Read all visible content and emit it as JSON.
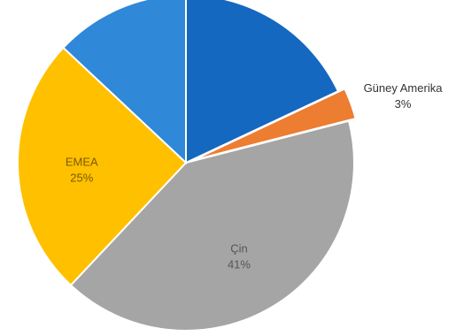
{
  "chart_data": {
    "type": "pie",
    "title": "",
    "start_angle_deg": 0,
    "direction": "clockwise",
    "slices": [
      {
        "label": "",
        "value": 18,
        "percent_label": "",
        "color": "#1568c0",
        "label_color": "#1a4f8a"
      },
      {
        "label": "Güney Amerika",
        "value": 3,
        "percent_label": "3%",
        "color": "#ed7d31",
        "label_color": "#333333"
      },
      {
        "label": "Çin",
        "value": 41,
        "percent_label": "41%",
        "color": "#a5a5a5",
        "label_color": "#555555"
      },
      {
        "label": "EMEA",
        "value": 25,
        "percent_label": "25%",
        "color": "#ffc000",
        "label_color": "#7a5a00"
      },
      {
        "label": "",
        "value": 13,
        "percent_label": "",
        "color": "#2f88d8",
        "label_color": "#1a4f8a"
      }
    ]
  }
}
